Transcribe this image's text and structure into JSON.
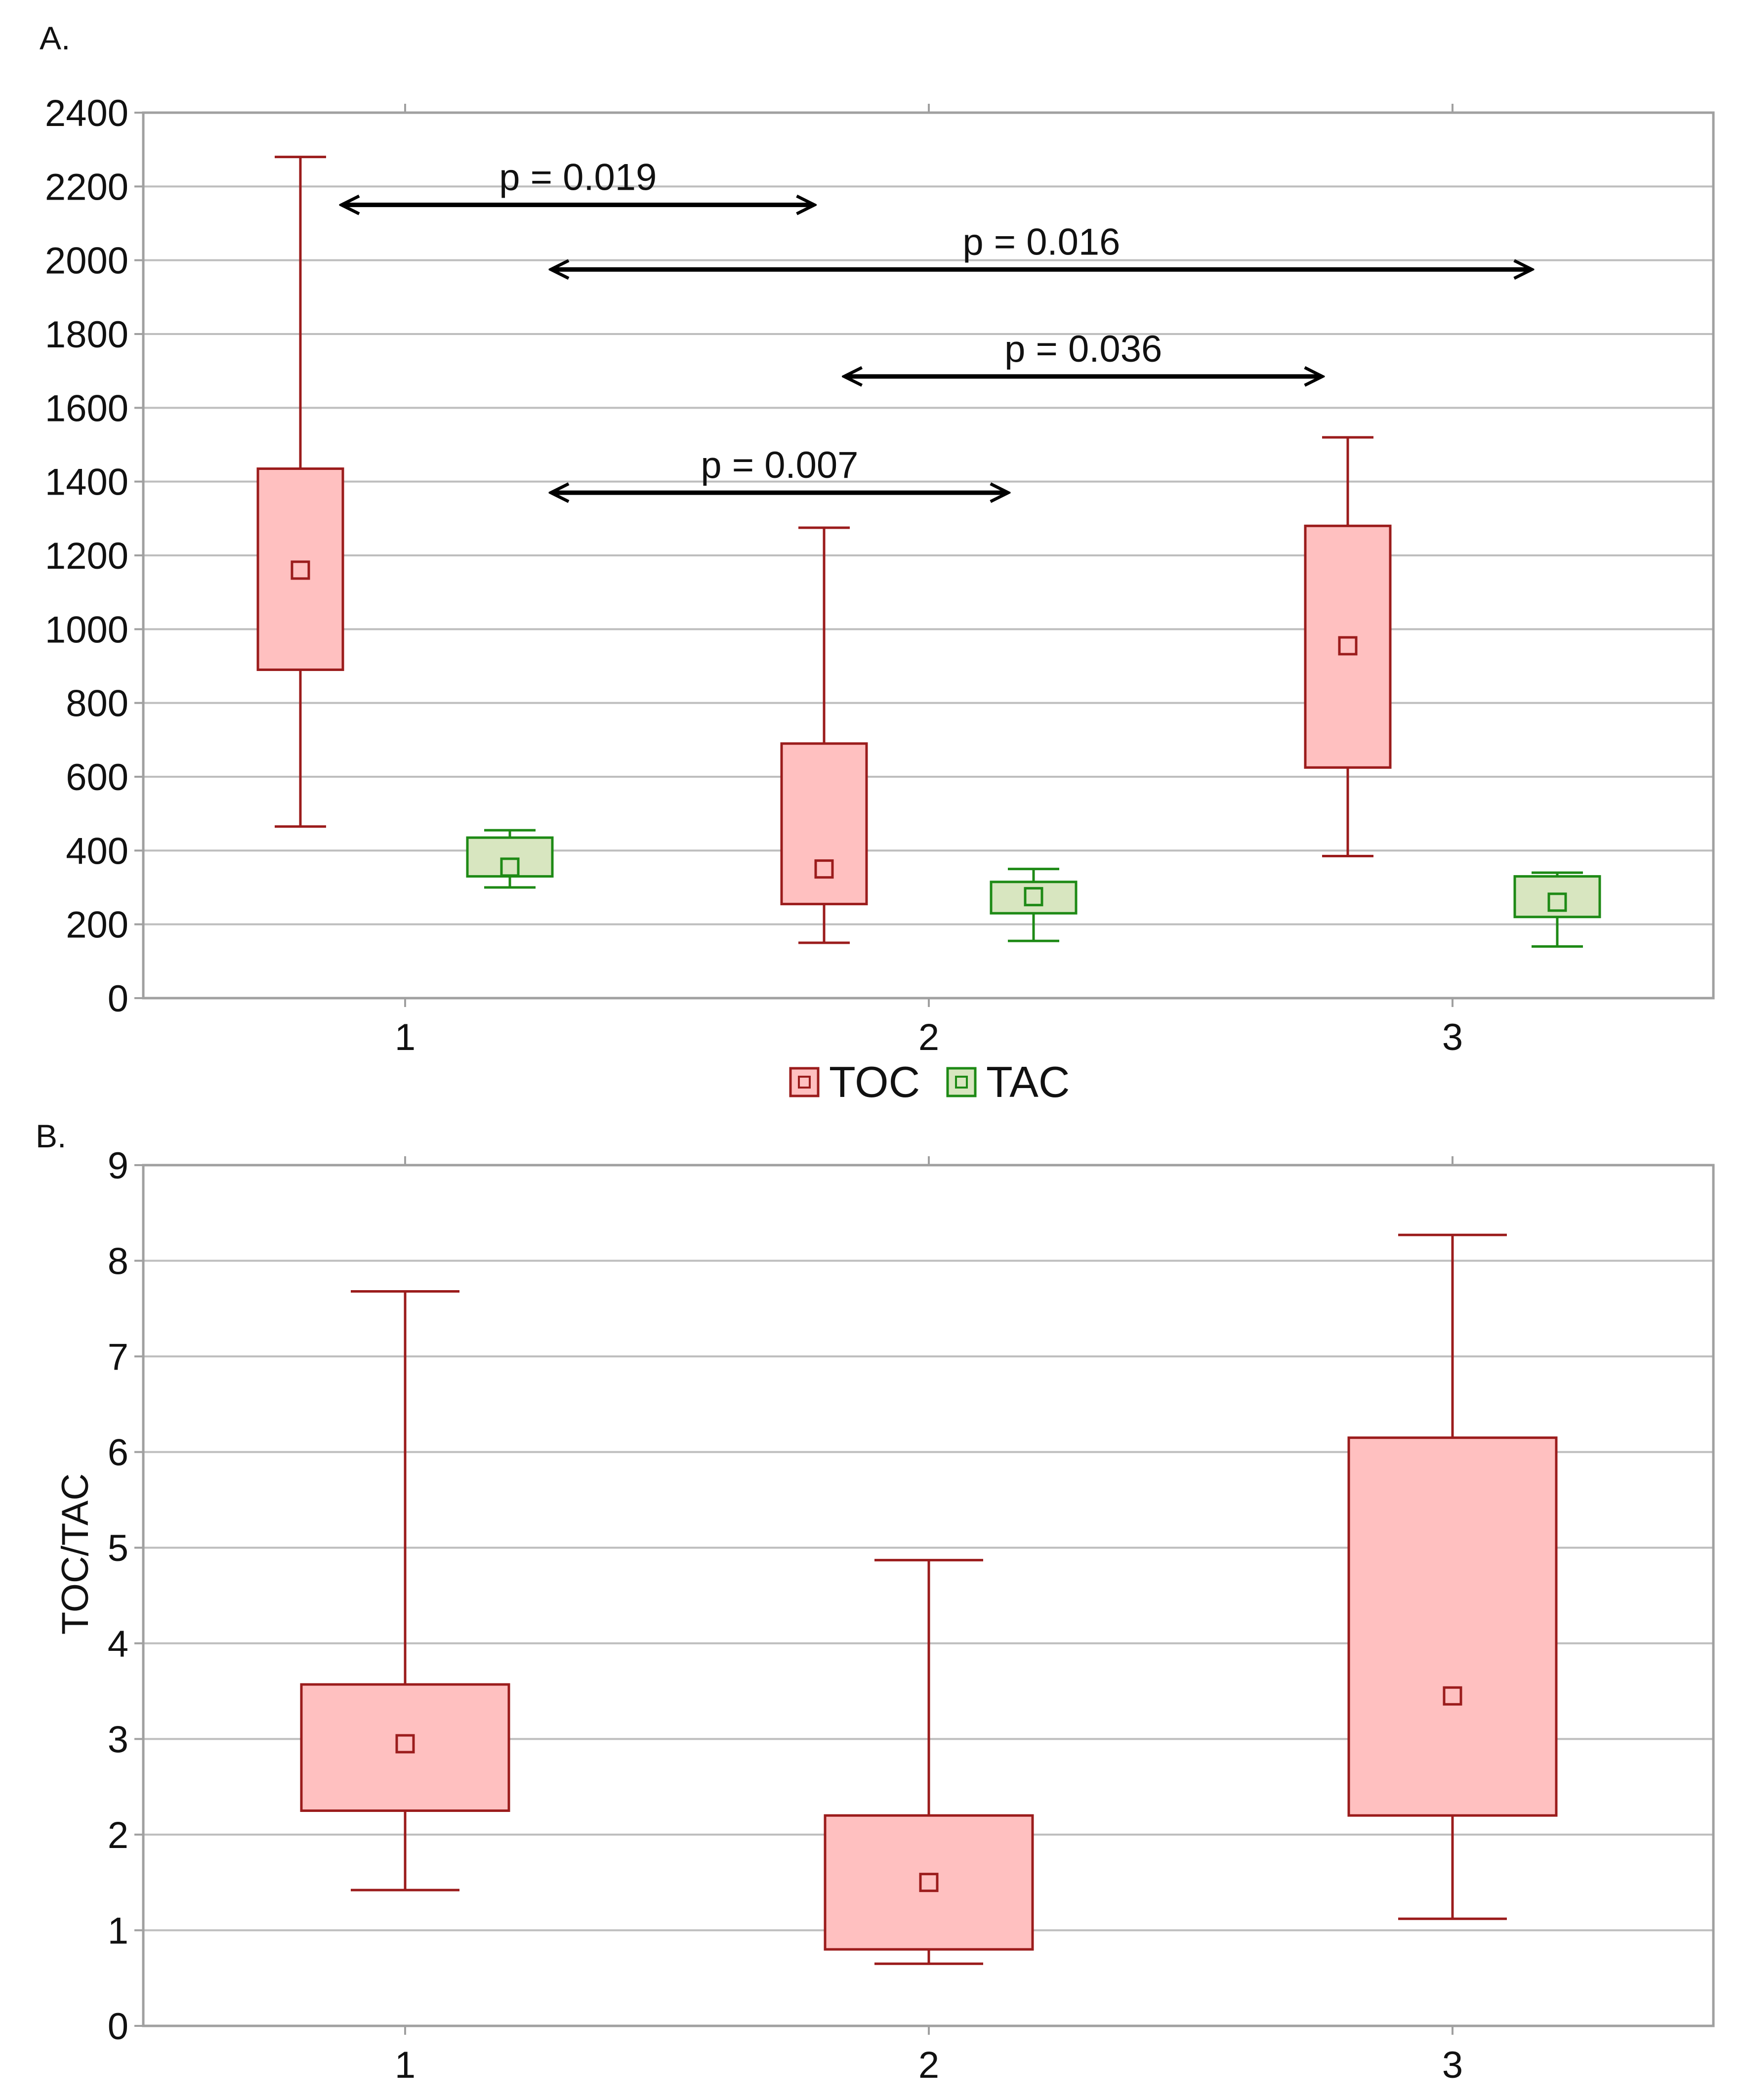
{
  "colors": {
    "toc_stroke": "#9B1C1C",
    "toc_fill": "#FFC0C0",
    "tac_stroke": "#1E8A16",
    "tac_fill": "#D8E6C0",
    "grid": "#BEBEBE",
    "axis": "#A0A0A0",
    "arrow": "#000000"
  },
  "chart_data": [
    {
      "panel_label": "A.",
      "type": "box",
      "ylim": [
        0,
        2400
      ],
      "yticks": [
        0,
        200,
        400,
        600,
        800,
        1000,
        1200,
        1400,
        1600,
        1800,
        2000,
        2200,
        2400
      ],
      "ytick_labels": [
        "0",
        "200",
        "400",
        "600",
        "800",
        "1000",
        "1200",
        "1400",
        "1600",
        "1800",
        "2000",
        "2200",
        "2400"
      ],
      "categories": [
        "1",
        "2",
        "3"
      ],
      "xlabel": "",
      "ylabel": "",
      "legend": {
        "position": "bottom-center",
        "entries": [
          "TOC",
          "TAC"
        ]
      },
      "series": [
        {
          "name": "TOC",
          "offset": -0.2,
          "boxes": [
            {
              "whisker_low": 465,
              "q1": 890,
              "median": 1160,
              "q3": 1435,
              "whisker_high": 2280
            },
            {
              "whisker_low": 150,
              "q1": 255,
              "median": 350,
              "q3": 690,
              "whisker_high": 1275
            },
            {
              "whisker_low": 385,
              "q1": 625,
              "median": 955,
              "q3": 1280,
              "whisker_high": 1520
            }
          ]
        },
        {
          "name": "TAC",
          "offset": 0.2,
          "boxes": [
            {
              "whisker_low": 300,
              "q1": 330,
              "median": 355,
              "q3": 435,
              "whisker_high": 455
            },
            {
              "whisker_low": 155,
              "q1": 230,
              "median": 275,
              "q3": 315,
              "whisker_high": 350
            },
            {
              "whisker_low": 140,
              "q1": 220,
              "median": 260,
              "q3": 330,
              "whisker_high": 340
            }
          ]
        }
      ],
      "annotations": [
        {
          "text": "p = 0.019",
          "x_from": 0.88,
          "x_to": 1.78,
          "y": 2150
        },
        {
          "text": "p = 0.016",
          "x_from": 1.28,
          "x_to": 3.15,
          "y": 1975
        },
        {
          "text": "p = 0.036",
          "x_from": 1.84,
          "x_to": 2.75,
          "y": 1685
        },
        {
          "text": "p = 0.007",
          "x_from": 1.28,
          "x_to": 2.15,
          "y": 1370
        }
      ]
    },
    {
      "panel_label": "B.",
      "type": "box",
      "ylim": [
        0,
        9
      ],
      "yticks": [
        0,
        1,
        2,
        3,
        4,
        5,
        6,
        7,
        8,
        9
      ],
      "ytick_labels": [
        "0",
        "1",
        "2",
        "3",
        "4",
        "5",
        "6",
        "7",
        "8",
        "9"
      ],
      "categories": [
        "1",
        "2",
        "3"
      ],
      "xlabel": "",
      "ylabel": "TOC/TAC",
      "series": [
        {
          "name": "TOC/TAC",
          "offset": 0,
          "boxes": [
            {
              "whisker_low": 1.42,
              "q1": 2.25,
              "median": 2.95,
              "q3": 3.57,
              "whisker_high": 7.68
            },
            {
              "whisker_low": 0.65,
              "q1": 0.8,
              "median": 1.5,
              "q3": 2.2,
              "whisker_high": 4.87
            },
            {
              "whisker_low": 1.12,
              "q1": 2.2,
              "median": 3.45,
              "q3": 6.15,
              "whisker_high": 8.27
            }
          ]
        }
      ]
    }
  ]
}
